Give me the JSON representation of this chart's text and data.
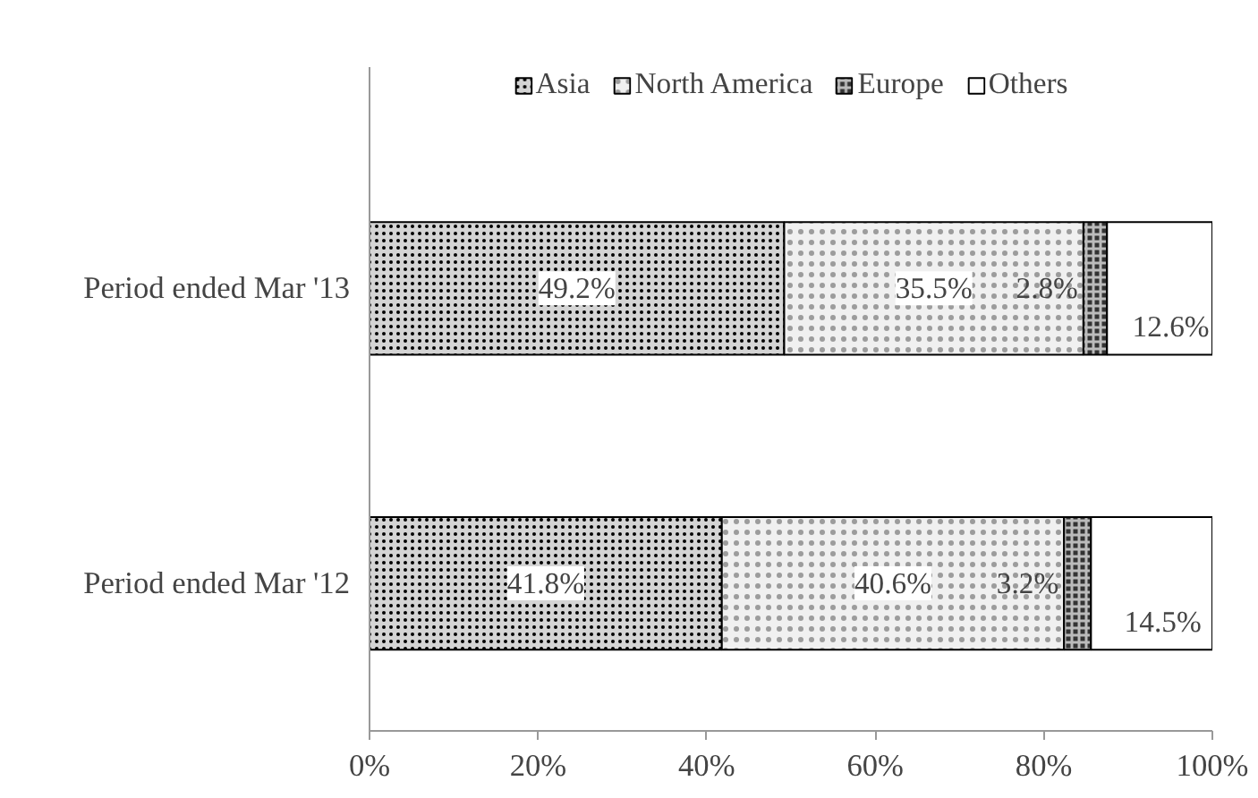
{
  "chart_data": {
    "type": "bar",
    "orientation": "horizontal",
    "stacked": true,
    "categories": [
      "Period ended Mar '13",
      "Period ended Mar '12"
    ],
    "series": [
      {
        "name": "Asia",
        "color": "#d4d4d4",
        "values": [
          49.2,
          41.8
        ],
        "value_labels": [
          "49.2%",
          "41.8%"
        ]
      },
      {
        "name": "North America",
        "color": "#f0f0f0",
        "values": [
          35.5,
          40.6
        ],
        "value_labels": [
          "35.5%",
          "40.6%"
        ]
      },
      {
        "name": "Europe",
        "color": "#333333",
        "values": [
          2.8,
          3.2
        ],
        "value_labels": [
          "2.8%",
          "3.2%"
        ]
      },
      {
        "name": "Others",
        "color": "#ffffff",
        "values": [
          12.6,
          14.5
        ],
        "value_labels": [
          "12.6%",
          "14.5%"
        ]
      }
    ],
    "xlim": [
      0,
      100
    ],
    "xticks": [
      {
        "value": 0,
        "label": "0%"
      },
      {
        "value": 20,
        "label": "20%"
      },
      {
        "value": 40,
        "label": "40%"
      },
      {
        "value": 60,
        "label": "60%"
      },
      {
        "value": 80,
        "label": "80%"
      },
      {
        "value": 100,
        "label": "100%"
      }
    ],
    "legend": "top",
    "grid": false
  }
}
